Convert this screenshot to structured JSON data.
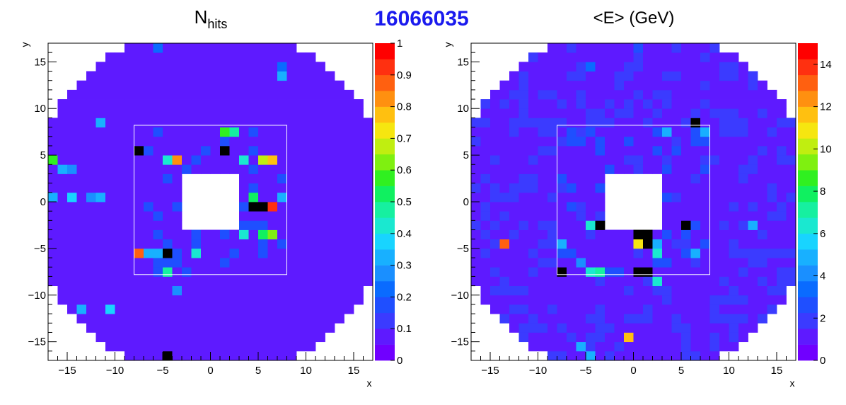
{
  "run_number": "16066035",
  "chart_data": [
    {
      "type": "heatmap",
      "title": "N",
      "title_sub": "hits",
      "xlabel": "x",
      "ylabel": "y",
      "xlim": [
        -17,
        17
      ],
      "ylim": [
        -17,
        17
      ],
      "x_ticks": [
        -15,
        -10,
        -5,
        0,
        5,
        10,
        15
      ],
      "y_ticks": [
        -15,
        -10,
        -5,
        0,
        5,
        10,
        15
      ],
      "x_tick_labels": [
        "−15",
        "−10",
        "−5",
        "0",
        "5",
        "10",
        "15"
      ],
      "y_tick_labels": [
        "−15",
        "−10",
        "−5",
        "0",
        "5",
        "10",
        "15"
      ],
      "z_range": [
        0,
        1
      ],
      "z_ticks": [
        0,
        0.1,
        0.2,
        0.3,
        0.4,
        0.5,
        0.6,
        0.7,
        0.8,
        0.9,
        1
      ],
      "z_tick_labels": [
        "0",
        "0.1",
        "0.2",
        "0.3",
        "0.4",
        "0.5",
        "0.6",
        "0.7",
        "0.8",
        "0.9",
        "1"
      ],
      "background_value": 0.05,
      "hot_cells": [
        [
          -4.5,
          -16.5,
          1.0
        ],
        [
          -13.5,
          -11.5,
          0.3
        ],
        [
          -10.5,
          -11.5,
          0.35
        ],
        [
          -3.5,
          -9.5,
          0.25
        ],
        [
          -16.5,
          4.5,
          0.55
        ],
        [
          -15.5,
          3.5,
          0.3
        ],
        [
          -14.5,
          3.5,
          0.25
        ],
        [
          -7.5,
          5.5,
          1.0
        ],
        [
          -3.5,
          4.5,
          0.8
        ],
        [
          -4.5,
          4.5,
          0.4
        ],
        [
          -7.5,
          -5.5,
          0.85
        ],
        [
          -6.5,
          -5.5,
          0.3
        ],
        [
          -5.5,
          -5.5,
          0.3
        ],
        [
          -4.5,
          -5.5,
          1.0
        ],
        [
          1.5,
          7.5,
          0.55
        ],
        [
          2.5,
          7.5,
          0.45
        ],
        [
          1.5,
          5.5,
          1.0
        ],
        [
          6.5,
          4.5,
          0.75
        ],
        [
          5.5,
          4.5,
          0.65
        ],
        [
          3.5,
          4.5,
          0.4
        ],
        [
          4.5,
          0.5,
          0.5
        ],
        [
          4.5,
          -0.5,
          1.0
        ],
        [
          5.5,
          -0.5,
          1.0
        ],
        [
          6.5,
          -0.5,
          0.9
        ],
        [
          7.5,
          0.5,
          0.3
        ],
        [
          3.5,
          -3.5,
          0.4
        ],
        [
          5.5,
          -3.5,
          0.5
        ],
        [
          6.5,
          -3.5,
          0.6
        ],
        [
          -1.5,
          -5.5,
          0.4
        ],
        [
          -14.5,
          0.5,
          0.35
        ],
        [
          -12.5,
          0.5,
          0.25
        ],
        [
          -11.5,
          0.5,
          0.3
        ],
        [
          -16.5,
          0.5,
          0.3
        ],
        [
          7.5,
          13.5,
          0.3
        ],
        [
          7.5,
          14.5,
          0.2
        ],
        [
          -11.5,
          8.5,
          0.3
        ],
        [
          -5.5,
          16.5,
          0.2
        ],
        [
          -4.5,
          -7.5,
          0.45
        ]
      ]
    },
    {
      "type": "heatmap",
      "title": "<E> (GeV)",
      "xlabel": "x",
      "ylabel": "y",
      "xlim": [
        -17,
        17
      ],
      "ylim": [
        -17,
        17
      ],
      "x_ticks": [
        -15,
        -10,
        -5,
        0,
        5,
        10,
        15
      ],
      "y_ticks": [
        -15,
        -10,
        -5,
        0,
        5,
        10,
        15
      ],
      "x_tick_labels": [
        "−15",
        "−10",
        "−5",
        "0",
        "5",
        "10",
        "15"
      ],
      "y_tick_labels": [
        "−15",
        "−10",
        "−5",
        "0",
        "5",
        "10",
        "15"
      ],
      "z_range": [
        0,
        15
      ],
      "z_ticks": [
        0,
        2,
        4,
        6,
        8,
        10,
        12,
        14
      ],
      "z_tick_labels": [
        "0",
        "2",
        "4",
        "6",
        "8",
        "10",
        "12",
        "14"
      ],
      "background_value": 0.8,
      "hot_cells": [
        [
          -13.5,
          -4.5,
          13.0
        ],
        [
          -7.5,
          -4.5,
          5.0
        ],
        [
          -0.5,
          -14.5,
          11.5
        ],
        [
          -5.5,
          -15.5,
          4.5
        ],
        [
          -4.5,
          -16.5,
          5.0
        ],
        [
          -12.5,
          -14.5,
          4.0
        ],
        [
          2.5,
          -8.5,
          6.0
        ],
        [
          6.5,
          8.5,
          15.0
        ],
        [
          7.5,
          7.5,
          5.0
        ],
        [
          3.5,
          7.5,
          5.0
        ],
        [
          2.5,
          2.5,
          4.5
        ],
        [
          12.5,
          -2.5,
          4.5
        ],
        [
          -3.5,
          -2.5,
          15.0
        ],
        [
          -4.5,
          -2.5,
          6.5
        ],
        [
          -2.5,
          -2.5,
          4.0
        ],
        [
          0.5,
          -3.5,
          15.0
        ],
        [
          1.5,
          -3.5,
          15.0
        ],
        [
          1.5,
          -4.5,
          15.0
        ],
        [
          2.5,
          -4.5,
          5.0
        ],
        [
          0.5,
          -4.5,
          11.0
        ],
        [
          5.5,
          -2.5,
          15.0
        ],
        [
          6.5,
          -5.5,
          4.5
        ],
        [
          -7.5,
          -7.5,
          15.0
        ],
        [
          -4.5,
          -7.5,
          6.5
        ],
        [
          0.5,
          -7.5,
          15.0
        ],
        [
          1.5,
          -7.5,
          15.0
        ],
        [
          -3.5,
          -7.5,
          7.0
        ],
        [
          2.5,
          -5.5,
          6.5
        ],
        [
          -5.5,
          -6.5,
          4.0
        ],
        [
          0.5,
          16.5,
          2.5
        ],
        [
          -4.5,
          14.5,
          3.0
        ]
      ]
    }
  ]
}
